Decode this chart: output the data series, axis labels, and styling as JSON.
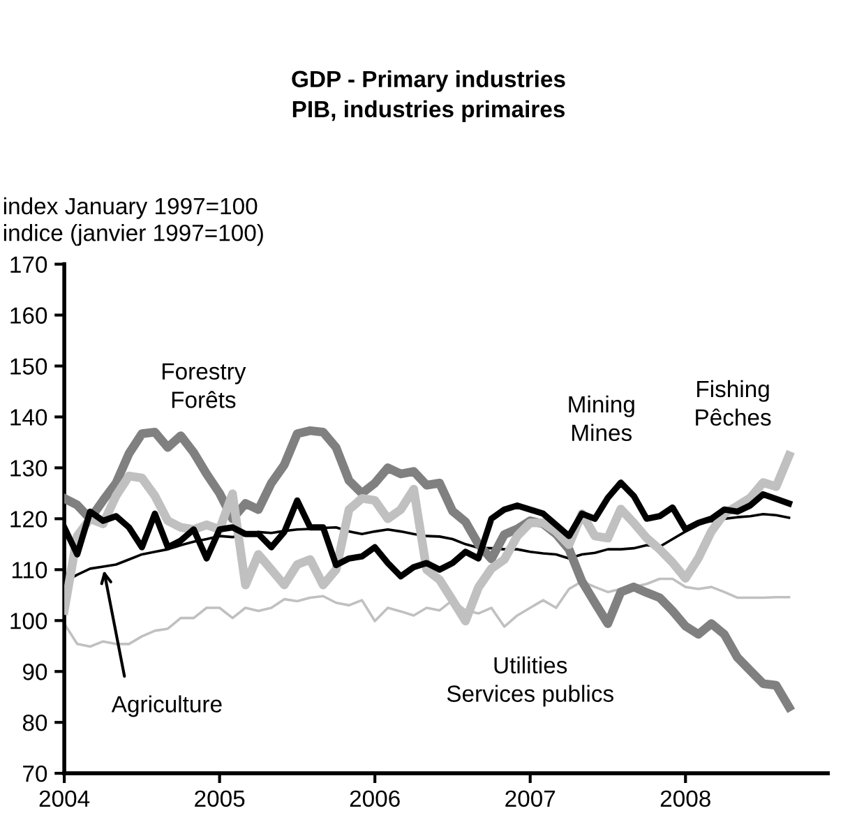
{
  "chart_data": {
    "type": "line",
    "title": "GDP - Primary industries\nPIB, industries primaires",
    "ylabel": "index January 1997=100\nindice (janvier 1997=100)",
    "x": [
      "2004-01",
      "2004-02",
      "2004-03",
      "2004-04",
      "2004-05",
      "2004-06",
      "2004-07",
      "2004-08",
      "2004-09",
      "2004-10",
      "2004-11",
      "2004-12",
      "2005-01",
      "2005-02",
      "2005-03",
      "2005-04",
      "2005-05",
      "2005-06",
      "2005-07",
      "2005-08",
      "2005-09",
      "2005-10",
      "2005-11",
      "2005-12",
      "2006-01",
      "2006-02",
      "2006-03",
      "2006-04",
      "2006-05",
      "2006-06",
      "2006-07",
      "2006-08",
      "2006-09",
      "2006-10",
      "2006-11",
      "2006-12",
      "2007-01",
      "2007-02",
      "2007-03",
      "2007-04",
      "2007-05",
      "2007-06",
      "2007-07",
      "2007-08",
      "2007-09",
      "2007-10",
      "2007-11",
      "2007-12",
      "2008-01",
      "2008-02",
      "2008-03",
      "2008-04",
      "2008-05",
      "2008-06",
      "2008-07",
      "2008-08",
      "2008-09"
    ],
    "series": [
      {
        "color": "#c0c0c0",
        "values": [
          99.4,
          95.4,
          94.9,
          95.9,
          95.4,
          95.4,
          96.9,
          98,
          98.4,
          100.5,
          100.5,
          102.5,
          102.5,
          100.5,
          102.5,
          101.9,
          102.5,
          104.2,
          103.8,
          104.5,
          104.8,
          103.5,
          103,
          104,
          99.9,
          102.5,
          101.8,
          101,
          102.5,
          102,
          104,
          102,
          101.4,
          102.5,
          98.8,
          101,
          102.5,
          104,
          102.5,
          106.2,
          107.7,
          106.6,
          105.6,
          106.2,
          106.6,
          107.2,
          108.2,
          108.2,
          106.6,
          106.2,
          106.6,
          105.6,
          104.5,
          104.5,
          104.5,
          104.6,
          104.6
        ]
      },
      {
        "color": "#000000",
        "values": [
          107.6,
          109,
          110.2,
          110.6,
          111,
          112,
          113,
          113.5,
          114,
          114.8,
          115.5,
          116,
          116.6,
          116.4,
          116.8,
          117.4,
          117.2,
          117.6,
          117.9,
          118,
          118.2,
          118.3,
          117.5,
          117,
          117.5,
          117.9,
          117.5,
          117,
          116.6,
          116.5,
          116,
          115,
          114.3,
          114.2,
          114,
          114,
          113.5,
          113.2,
          113,
          112.2,
          113,
          113.3,
          114,
          114,
          114.2,
          114.8,
          114.5,
          116,
          117.5,
          119.2,
          119.5,
          120,
          120.3,
          120.5,
          120.9,
          120.7,
          120.2
        ]
      },
      {
        "color": "#808080",
        "values": [
          124,
          122.7,
          120,
          123.6,
          127,
          132.8,
          136.7,
          137,
          134,
          136.3,
          133,
          128.8,
          125,
          120,
          123,
          121.8,
          127,
          130.6,
          136.7,
          137.3,
          137,
          134,
          127.5,
          125,
          127,
          130,
          128.8,
          129.3,
          126.6,
          127,
          121.5,
          119.4,
          115,
          112.1,
          116.9,
          118,
          119.6,
          119,
          117,
          114,
          107.7,
          103.5,
          99.4,
          105.6,
          106.6,
          105.5,
          104.5,
          101.9,
          98.9,
          97.3,
          99.4,
          97.3,
          92.8,
          90.2,
          87.6,
          87.3,
          83
        ]
      },
      {
        "color": "#c0c0c0",
        "values": [
          102,
          116.6,
          120,
          119,
          124.5,
          128.4,
          128,
          124.5,
          119.6,
          118.3,
          117.9,
          118.8,
          117.9,
          124.9,
          107,
          113,
          110,
          107,
          111,
          112,
          107,
          110,
          121.8,
          124,
          123.6,
          120,
          121.8,
          125.8,
          110,
          108,
          104,
          99.9,
          106.5,
          110.2,
          112,
          116.6,
          119.2,
          119.2,
          117.5,
          114.9,
          121,
          116.6,
          116.2,
          121.9,
          119.2,
          116.2,
          114,
          111.4,
          108.3,
          112.3,
          117.5,
          121,
          122.5,
          124.1,
          127.1,
          126.3,
          132.4
        ]
      },
      {
        "color": "#000000",
        "values": [
          118.3,
          113,
          121.4,
          119.6,
          120.5,
          118.3,
          114.4,
          121,
          114.4,
          115.7,
          117.9,
          112.2,
          117.9,
          118.3,
          117,
          117,
          114.4,
          117.4,
          123.6,
          118.3,
          118.3,
          110.9,
          112.2,
          112.6,
          114.4,
          111.3,
          108.7,
          110.5,
          111.3,
          110,
          111.3,
          113.5,
          112.2,
          120,
          121.8,
          122.6,
          121.8,
          121,
          118.8,
          116.6,
          121,
          120,
          124.1,
          127.1,
          124.5,
          120,
          120.5,
          122.2,
          117.9,
          119.2,
          120,
          121.8,
          121.4,
          122.6,
          124.8,
          123.9,
          123
        ]
      }
    ],
    "xlim": [
      "2004-01",
      "2008-12"
    ],
    "xticks": [
      {
        "value": "2004-01",
        "label": "2004"
      },
      {
        "value": "2005-01",
        "label": "2005"
      },
      {
        "value": "2006-01",
        "label": "2006"
      },
      {
        "value": "2007-01",
        "label": "2007"
      },
      {
        "value": "2008-01",
        "label": "2008"
      }
    ],
    "ylim": [
      70,
      170
    ],
    "yticks": [
      70,
      80,
      90,
      100,
      110,
      120,
      130,
      140,
      150,
      160,
      170
    ],
    "grid": false,
    "marker": "none",
    "line_style": "solid",
    "annotations": [
      {
        "text": "Forestry\nForêts",
        "x": "2004-08",
        "y": 137
      },
      {
        "text": "Mining\nMines",
        "x": "2007-08",
        "y": 127.1
      },
      {
        "text": "Fishing\nPêches",
        "x": "2008-09",
        "y": 132.4
      },
      {
        "text": "Utilities\nServices publics",
        "x": "2007-01",
        "y": 102.5
      },
      {
        "text": "Agriculture",
        "x": "2004-04",
        "y": 110.6
      }
    ]
  }
}
